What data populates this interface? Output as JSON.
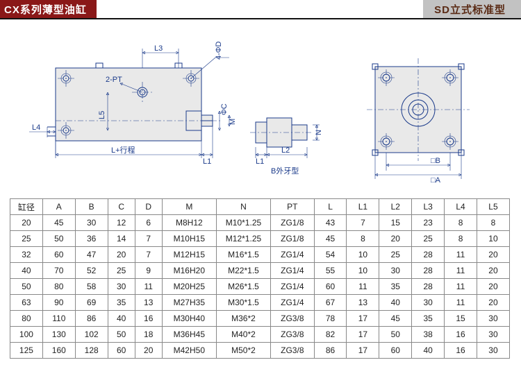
{
  "header": {
    "left_title": "CX系列薄型油缸",
    "right_title": "SD立式标准型"
  },
  "diagram": {
    "labels": {
      "L3": "L3",
      "FourPhiD": "4-ΦD",
      "TwoPT": "2-PT",
      "L5": "L5",
      "L4": "L4",
      "PhiC": "ΦC",
      "M": "M",
      "Lstroke": "L+行程",
      "L1": "L1",
      "L1b": "L1",
      "L2": "L2",
      "N": "N",
      "Bshape": "B外牙型",
      "SqA": "□A",
      "SqB": "□B"
    },
    "colors": {
      "line": "#1a3a8a",
      "fill": "#e9e9e9",
      "bg": "#ffffff"
    }
  },
  "table": {
    "columns": [
      "缸径",
      "A",
      "B",
      "C",
      "D",
      "M",
      "N",
      "PT",
      "L",
      "L1",
      "L2",
      "L3",
      "L4",
      "L5"
    ],
    "col_widths_pct": [
      6,
      6,
      6,
      5,
      5,
      10,
      10,
      8,
      6,
      6,
      6,
      6,
      6,
      6
    ],
    "rows": [
      [
        "20",
        "45",
        "30",
        "12",
        "6",
        "M8H12",
        "M10*1.25",
        "ZG1/8",
        "43",
        "7",
        "15",
        "23",
        "8",
        "8"
      ],
      [
        "25",
        "50",
        "36",
        "14",
        "7",
        "M10H15",
        "M12*1.25",
        "ZG1/8",
        "45",
        "8",
        "20",
        "25",
        "8",
        "10"
      ],
      [
        "32",
        "60",
        "47",
        "20",
        "7",
        "M12H15",
        "M16*1.5",
        "ZG1/4",
        "54",
        "10",
        "25",
        "28",
        "11",
        "20"
      ],
      [
        "40",
        "70",
        "52",
        "25",
        "9",
        "M16H20",
        "M22*1.5",
        "ZG1/4",
        "55",
        "10",
        "30",
        "28",
        "11",
        "20"
      ],
      [
        "50",
        "80",
        "58",
        "30",
        "11",
        "M20H25",
        "M26*1.5",
        "ZG1/4",
        "60",
        "11",
        "35",
        "28",
        "11",
        "20"
      ],
      [
        "63",
        "90",
        "69",
        "35",
        "13",
        "M27H35",
        "M30*1.5",
        "ZG1/4",
        "67",
        "13",
        "40",
        "30",
        "11",
        "20"
      ],
      [
        "80",
        "110",
        "86",
        "40",
        "16",
        "M30H40",
        "M36*2",
        "ZG3/8",
        "78",
        "17",
        "45",
        "35",
        "15",
        "30"
      ],
      [
        "100",
        "130",
        "102",
        "50",
        "18",
        "M36H45",
        "M40*2",
        "ZG3/8",
        "82",
        "17",
        "50",
        "38",
        "16",
        "30"
      ],
      [
        "125",
        "160",
        "128",
        "60",
        "20",
        "M42H50",
        "M50*2",
        "ZG3/8",
        "86",
        "17",
        "60",
        "40",
        "16",
        "30"
      ]
    ]
  }
}
